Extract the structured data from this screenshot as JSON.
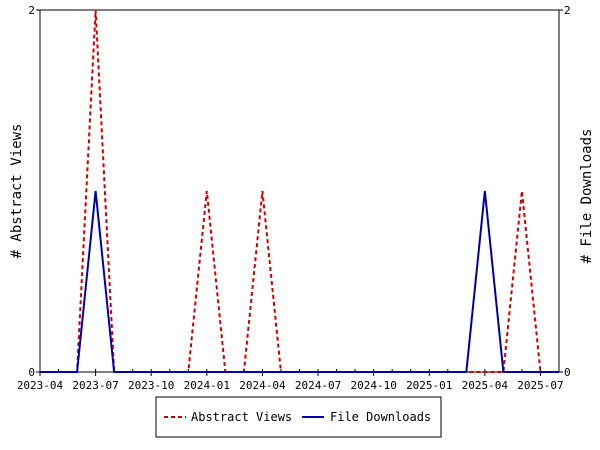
{
  "chart_data": {
    "type": "line",
    "x": [
      "2023-04",
      "2023-05",
      "2023-06",
      "2023-07",
      "2023-08",
      "2023-09",
      "2023-10",
      "2023-11",
      "2023-12",
      "2024-01",
      "2024-02",
      "2024-03",
      "2024-04",
      "2024-05",
      "2024-06",
      "2024-07",
      "2024-08",
      "2024-09",
      "2024-10",
      "2024-11",
      "2024-12",
      "2025-01",
      "2025-02",
      "2025-03",
      "2025-04",
      "2025-05",
      "2025-06",
      "2025-07",
      "2025-08"
    ],
    "x_tick_labels": [
      "2023-04",
      "2023-07",
      "2023-10",
      "2024-01",
      "2024-04",
      "2024-07",
      "2024-10",
      "2025-01",
      "2025-04",
      "2025-07"
    ],
    "series": [
      {
        "name": "Abstract Views",
        "axis": "left",
        "color": "#cc0000",
        "dash": "dashed",
        "values": [
          0,
          0,
          0,
          2,
          0,
          0,
          0,
          0,
          0,
          1,
          0,
          0,
          1,
          0,
          0,
          0,
          0,
          0,
          0,
          0,
          0,
          0,
          0,
          0,
          0,
          0,
          1,
          0,
          0
        ]
      },
      {
        "name": "File Downloads",
        "axis": "right",
        "color": "#0000aa",
        "dash": "solid",
        "values": [
          0,
          0,
          0,
          1,
          0,
          0,
          0,
          0,
          0,
          0,
          0,
          0,
          0,
          0,
          0,
          0,
          0,
          0,
          0,
          0,
          0,
          0,
          0,
          0,
          1,
          0,
          0,
          0,
          0
        ]
      }
    ],
    "ylabel_left": "# Abstract Views",
    "ylabel_right": "# File Downloads",
    "ylim_left": [
      0,
      2
    ],
    "ylim_right": [
      0,
      2
    ],
    "y_ticks_left": [
      "0",
      "2"
    ],
    "y_ticks_right": [
      "0",
      "2"
    ],
    "grid": false,
    "legend": "bottom"
  }
}
